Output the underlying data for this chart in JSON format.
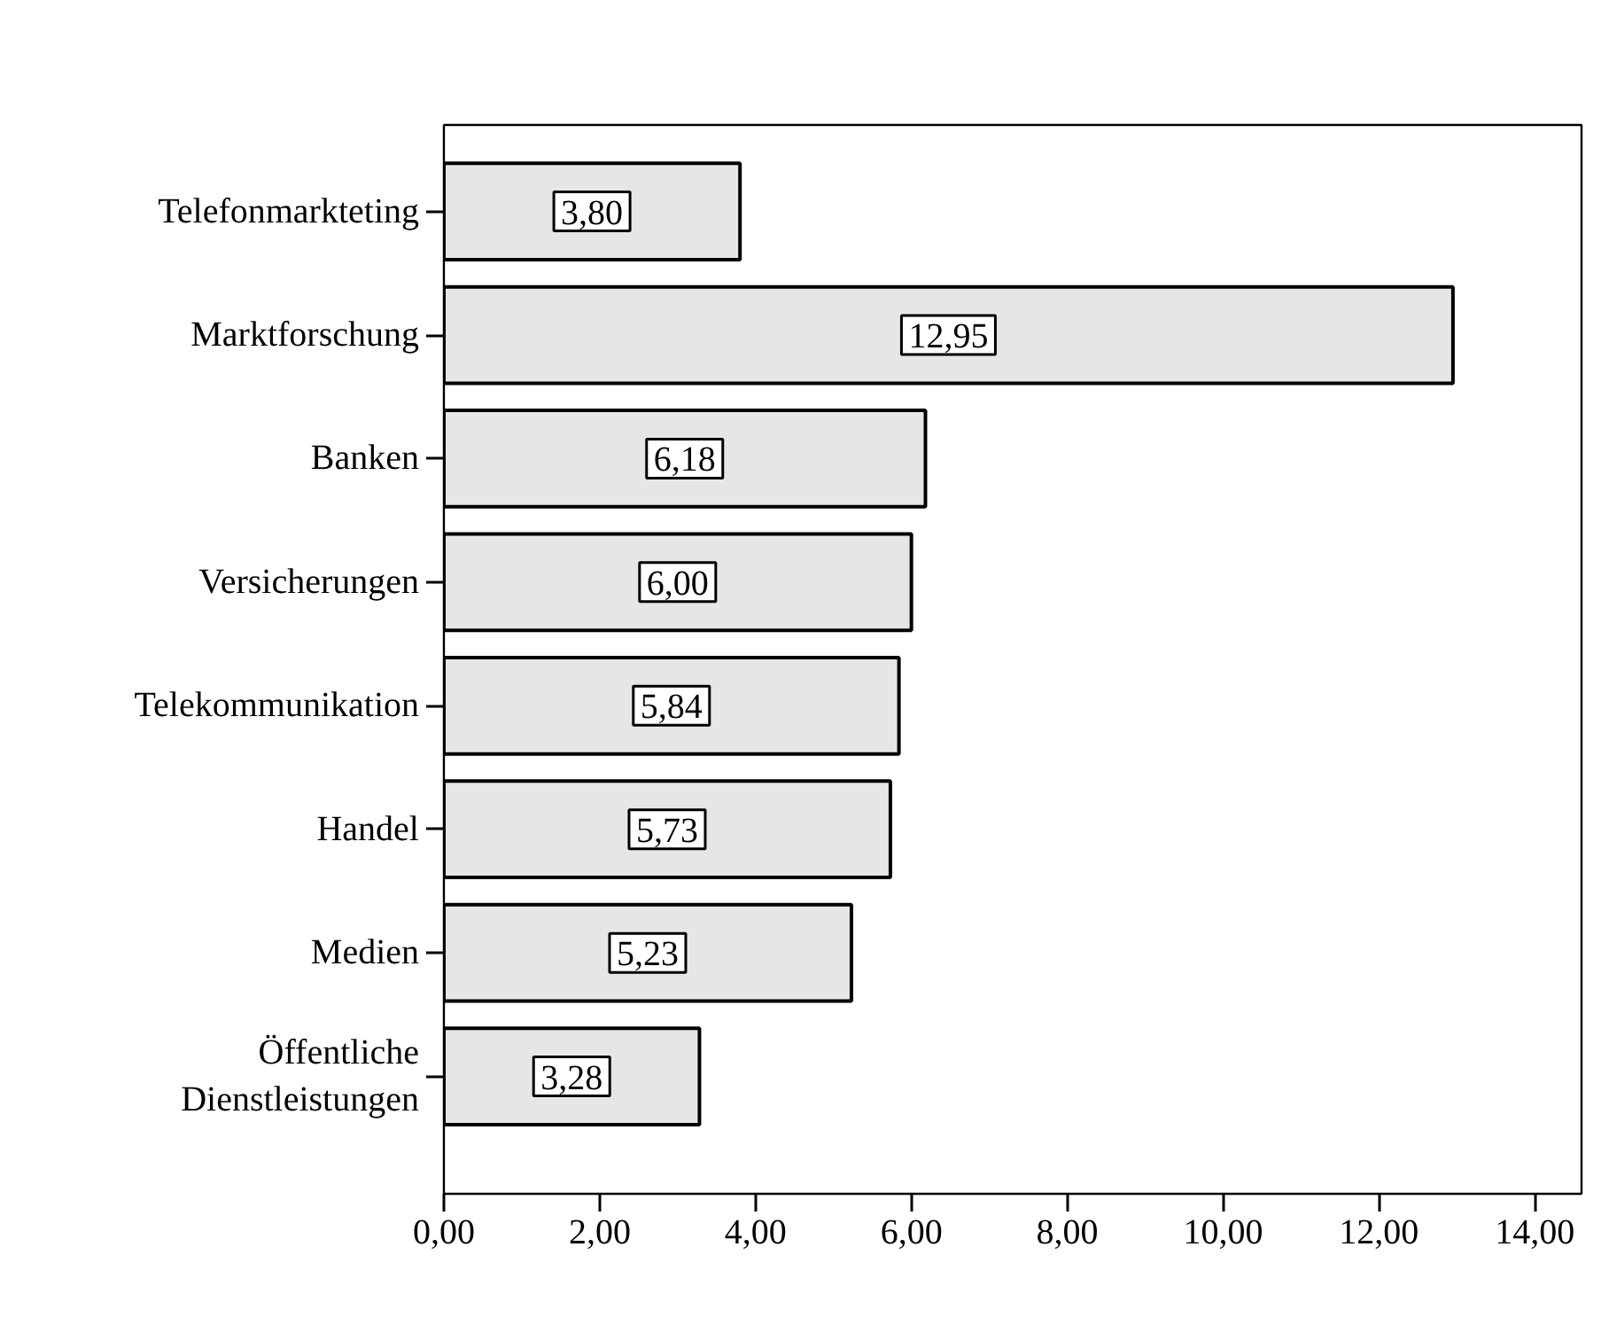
{
  "chart_data": {
    "type": "bar",
    "orientation": "horizontal",
    "categories": [
      "Telefonmarkteting",
      "Marktforschung",
      "Banken",
      "Versicherungen",
      "Telekommunikation",
      "Handel",
      "Medien",
      "Öffentliche\nDienstleistungen"
    ],
    "values": [
      3.8,
      12.95,
      6.18,
      6.0,
      5.84,
      5.73,
      5.23,
      3.28
    ],
    "value_labels": [
      "3,80",
      "12,95",
      "6,18",
      "6,00",
      "5,84",
      "5,73",
      "5,23",
      "3,28"
    ],
    "color": "#e6e6e6",
    "xlim": [
      0,
      14.6
    ],
    "xticks": [
      {
        "value": 0,
        "label": "0,00"
      },
      {
        "value": 2,
        "label": "2,00"
      },
      {
        "value": 4,
        "label": "4,00"
      },
      {
        "value": 6,
        "label": "6,00"
      },
      {
        "value": 8,
        "label": "8,00"
      },
      {
        "value": 10,
        "label": "10,00"
      },
      {
        "value": 12,
        "label": "12,00"
      },
      {
        "value": 14,
        "label": "14,00"
      }
    ],
    "grid": false
  }
}
